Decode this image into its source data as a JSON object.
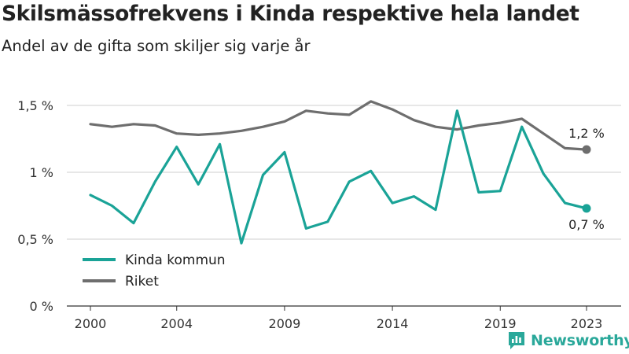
{
  "title": "Skilsmässofrekvens i Kinda respektive hela landet",
  "subtitle": "Andel av de gifta som skiljer sig varje år",
  "brand": {
    "name": "Newsworthy",
    "icon": "newsworthy-logo-icon"
  },
  "colors": {
    "kinda": "#1aa397",
    "riket": "#6e6e6e",
    "grid": "#cfcfcf",
    "axis": "#333333",
    "brand": "#2aa89a"
  },
  "chart_data": {
    "type": "line",
    "x": [
      2000,
      2001,
      2002,
      2003,
      2004,
      2005,
      2006,
      2007,
      2008,
      2009,
      2010,
      2011,
      2012,
      2013,
      2014,
      2015,
      2016,
      2017,
      2018,
      2019,
      2020,
      2021,
      2022,
      2023
    ],
    "xticks": [
      2000,
      2004,
      2009,
      2014,
      2019,
      2023
    ],
    "xtick_labels": [
      "2000",
      "2004",
      "2009",
      "2014",
      "2019",
      "2023"
    ],
    "ylim": [
      0,
      1.5
    ],
    "yticks": [
      0,
      0.5,
      1,
      1.5
    ],
    "ytick_labels": [
      "0 %",
      "0,5 %",
      "1 %",
      "1,5 %"
    ],
    "grid": true,
    "legend_position": "bottom-left",
    "series": [
      {
        "name": "Kinda kommun",
        "color": "#1aa397",
        "end_label": "0,7 %",
        "values": [
          0.83,
          0.75,
          0.62,
          0.93,
          1.19,
          0.91,
          1.21,
          0.47,
          0.98,
          1.15,
          0.58,
          0.63,
          0.93,
          1.01,
          0.77,
          0.82,
          0.72,
          1.46,
          0.85,
          0.86,
          1.34,
          0.99,
          0.77,
          0.73
        ]
      },
      {
        "name": "Riket",
        "color": "#6e6e6e",
        "end_label": "1,2 %",
        "values": [
          1.36,
          1.34,
          1.36,
          1.35,
          1.29,
          1.28,
          1.29,
          1.31,
          1.34,
          1.38,
          1.46,
          1.44,
          1.43,
          1.53,
          1.47,
          1.39,
          1.34,
          1.32,
          1.35,
          1.37,
          1.4,
          1.29,
          1.18,
          1.17
        ]
      }
    ]
  }
}
